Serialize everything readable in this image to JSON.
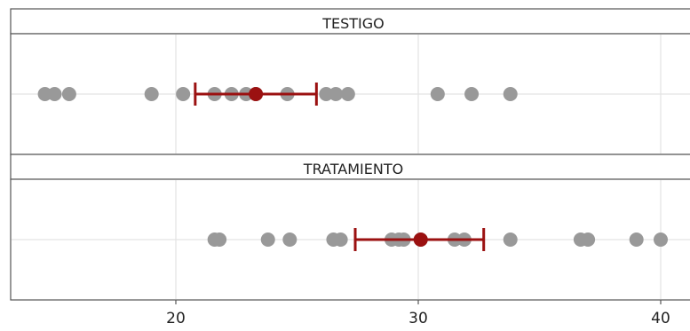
{
  "chart_data": {
    "type": "scatter",
    "layout": "faceted-dot-plot",
    "x_axis": {
      "ticks": [
        20,
        30,
        40
      ],
      "range": [
        13,
        41.5
      ]
    },
    "grid": true,
    "colors": {
      "points": "#999999",
      "mean": "#9b1111",
      "error_bar": "#9b1111",
      "frame": "#555555",
      "grid": "#e3e3e3"
    },
    "panels": [
      {
        "label": "TESTIGO",
        "points": [
          14.6,
          15.0,
          15.6,
          19.0,
          20.3,
          21.6,
          22.3,
          22.9,
          23.3,
          24.6,
          26.2,
          26.6,
          27.1,
          30.8,
          32.2,
          33.8
        ],
        "mean": 23.3,
        "error_bar": [
          20.8,
          25.8
        ]
      },
      {
        "label": "TRATAMIENTO",
        "points": [
          21.6,
          21.8,
          23.8,
          24.7,
          26.5,
          26.8,
          28.9,
          29.2,
          29.4,
          30.1,
          31.5,
          31.9,
          33.8,
          36.7,
          37.0,
          39.0,
          40.0
        ],
        "mean": 30.1,
        "error_bar": [
          27.4,
          32.7
        ]
      }
    ]
  }
}
